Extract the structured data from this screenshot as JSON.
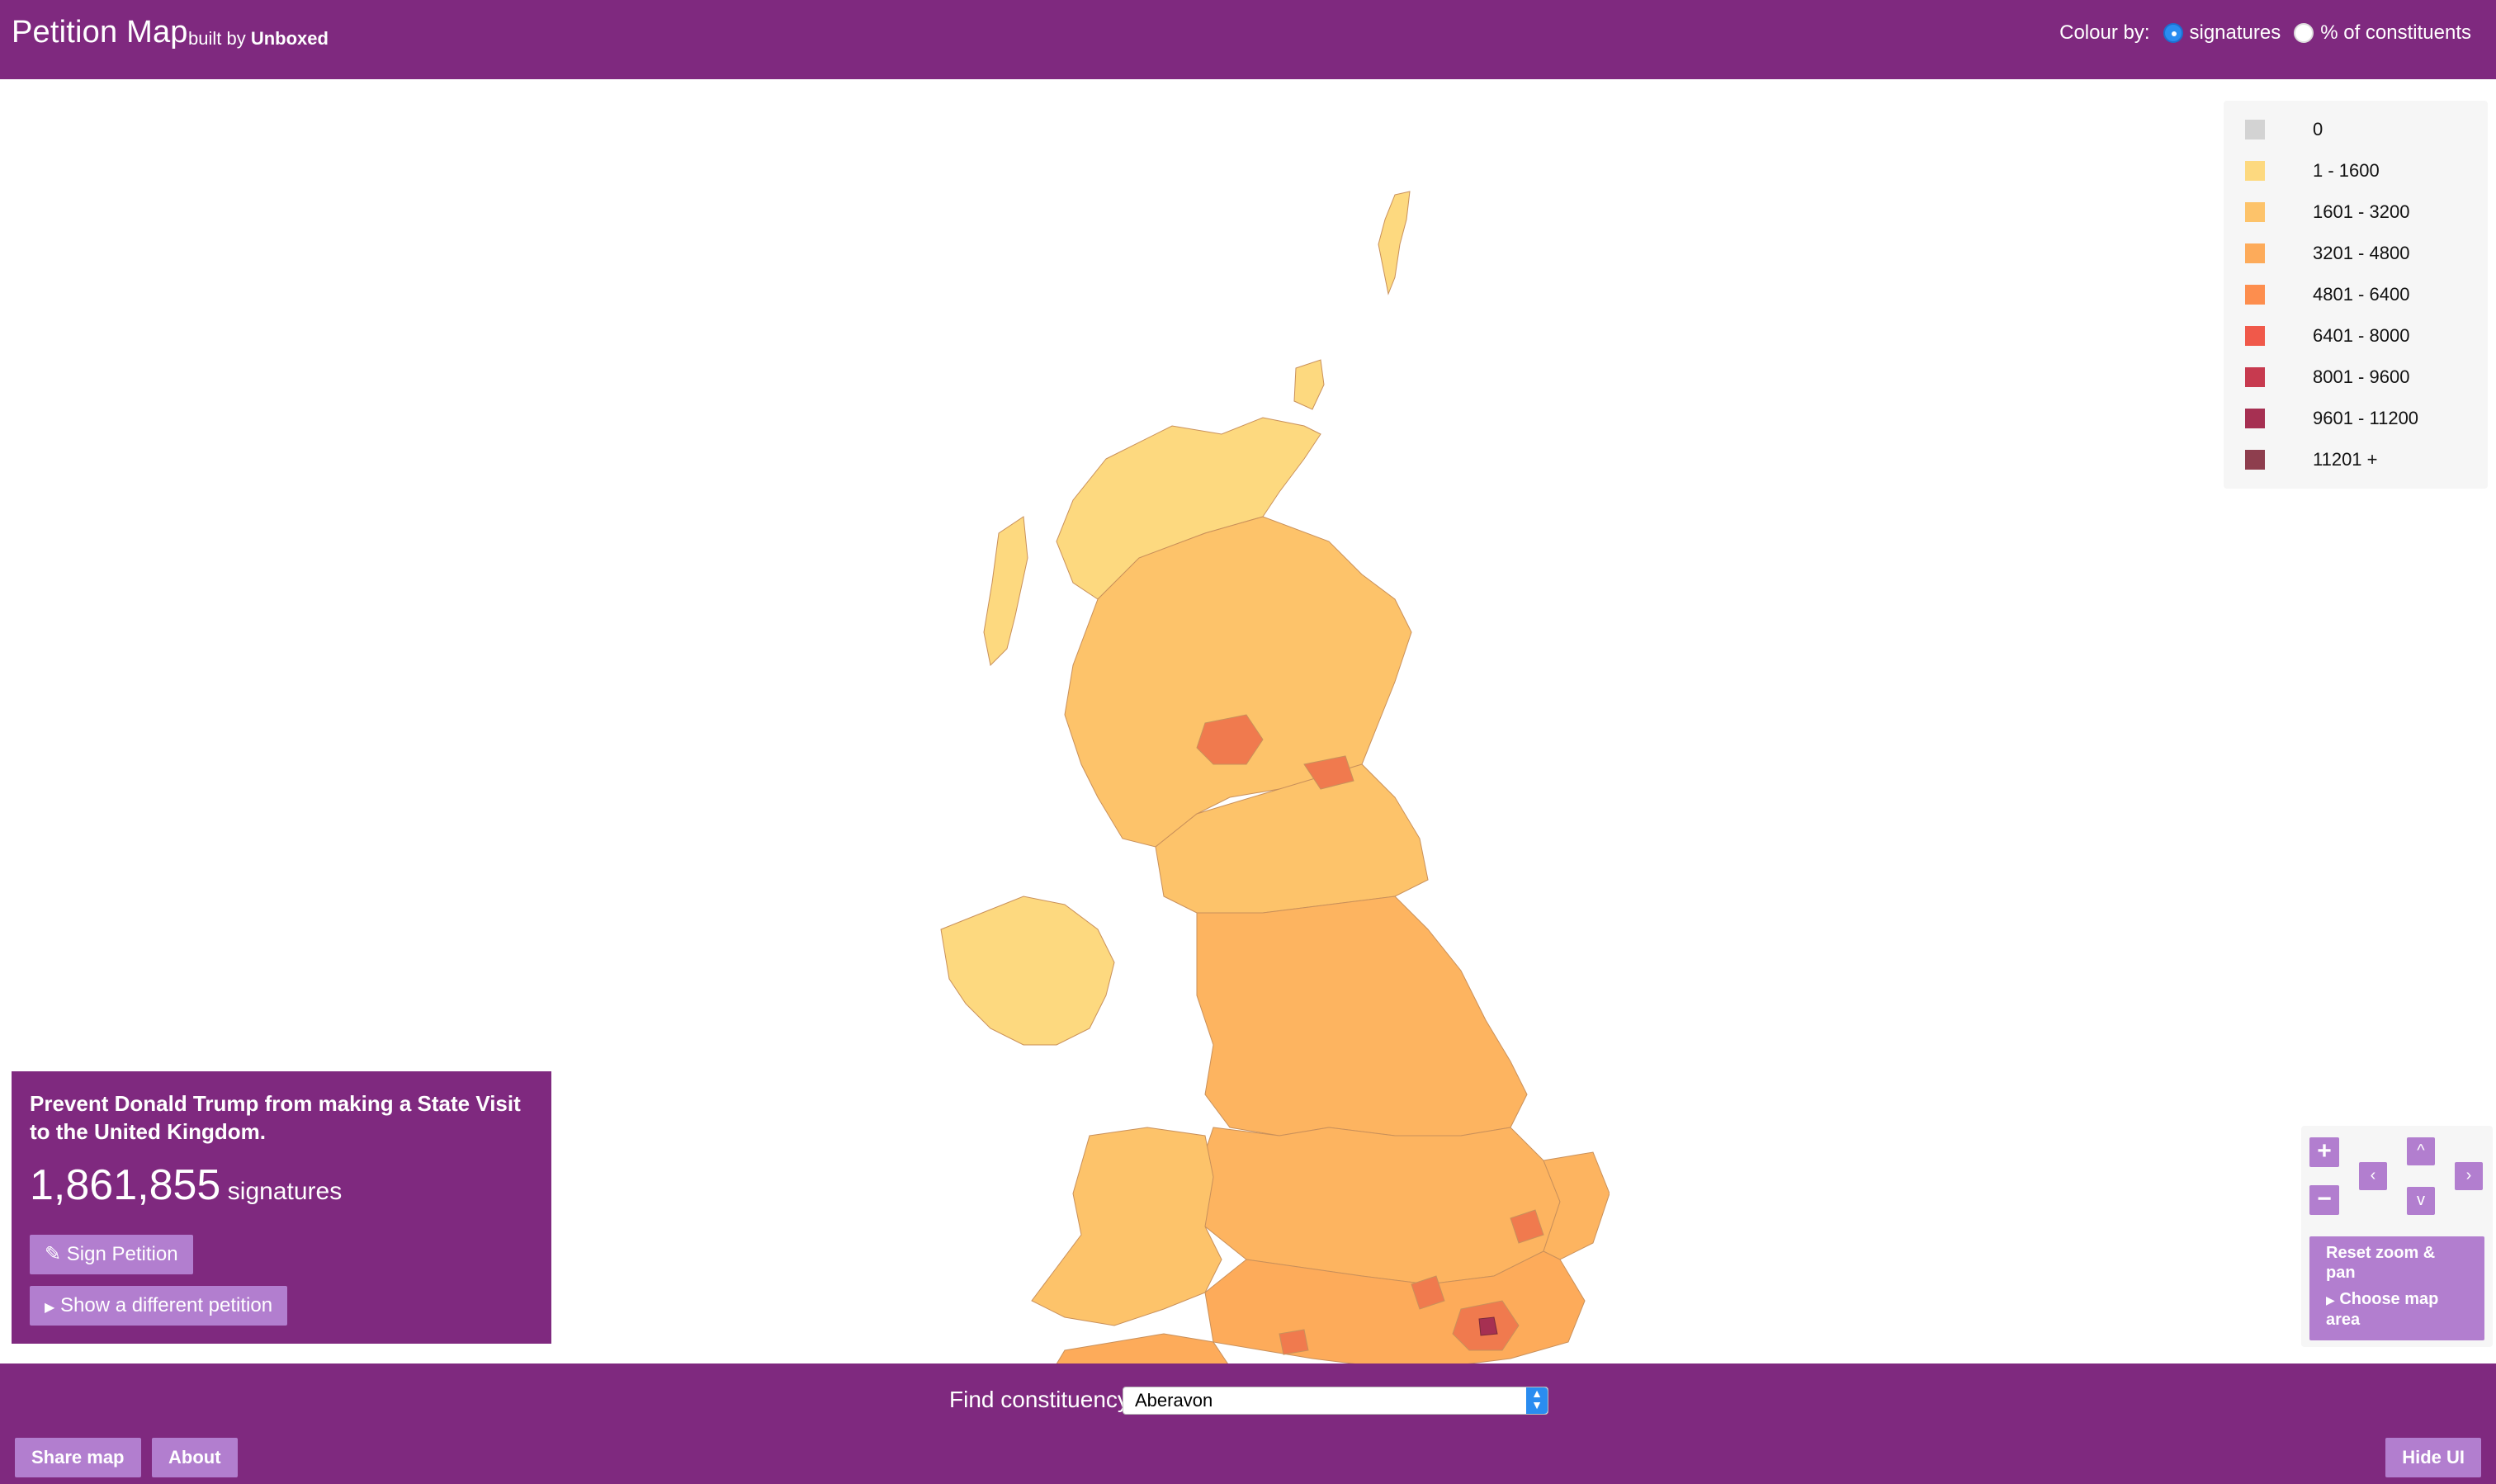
{
  "header": {
    "title": "Petition Map",
    "built_by_prefix": "built by",
    "built_by_name": "Unboxed",
    "colour_by_label": "Colour by:",
    "options": [
      {
        "label": "signatures",
        "selected": true
      },
      {
        "label": "% of constituents",
        "selected": false
      }
    ]
  },
  "legend": {
    "items": [
      {
        "label": "0",
        "color": "#d3d3d3"
      },
      {
        "label": "1 - 1600",
        "color": "#fdd97f"
      },
      {
        "label": "1601 - 3200",
        "color": "#fdc36a"
      },
      {
        "label": "3201 - 4800",
        "color": "#fdab5a"
      },
      {
        "label": "4801 - 6400",
        "color": "#fd8e4e"
      },
      {
        "label": "6401 - 8000",
        "color": "#f0594a"
      },
      {
        "label": "8001 - 9600",
        "color": "#c73a4f"
      },
      {
        "label": "9601 - 11200",
        "color": "#a63052"
      },
      {
        "label": "11201 +",
        "color": "#8e3e4e"
      }
    ]
  },
  "petition": {
    "title": "Prevent Donald Trump from making a State Visit to the United Kingdom.",
    "count": "1,861,855",
    "count_label": "signatures",
    "sign_label": "Sign Petition",
    "different_label": "Show a different petition"
  },
  "controls": {
    "zoom_in": "+",
    "zoom_out": "−",
    "pan_up": "^",
    "pan_down": "v",
    "pan_left": "‹",
    "pan_right": "›",
    "reset_label": "Reset zoom & pan",
    "choose_area_label": "Choose map area"
  },
  "footer": {
    "find_label": "Find constituency",
    "selected_constituency": "Aberavon",
    "share_label": "Share map",
    "about_label": "About",
    "hide_label": "Hide UI"
  },
  "map": {
    "region_colors": {
      "scotland": "#fdc36a",
      "highlands": "#fdd97f",
      "northern_ireland": "#fdd97f",
      "england_north": "#fdb460",
      "england_south": "#fdab5a",
      "wales": "#fdc36a",
      "hotspot": "#f07a4e",
      "city": "#a63052"
    }
  }
}
